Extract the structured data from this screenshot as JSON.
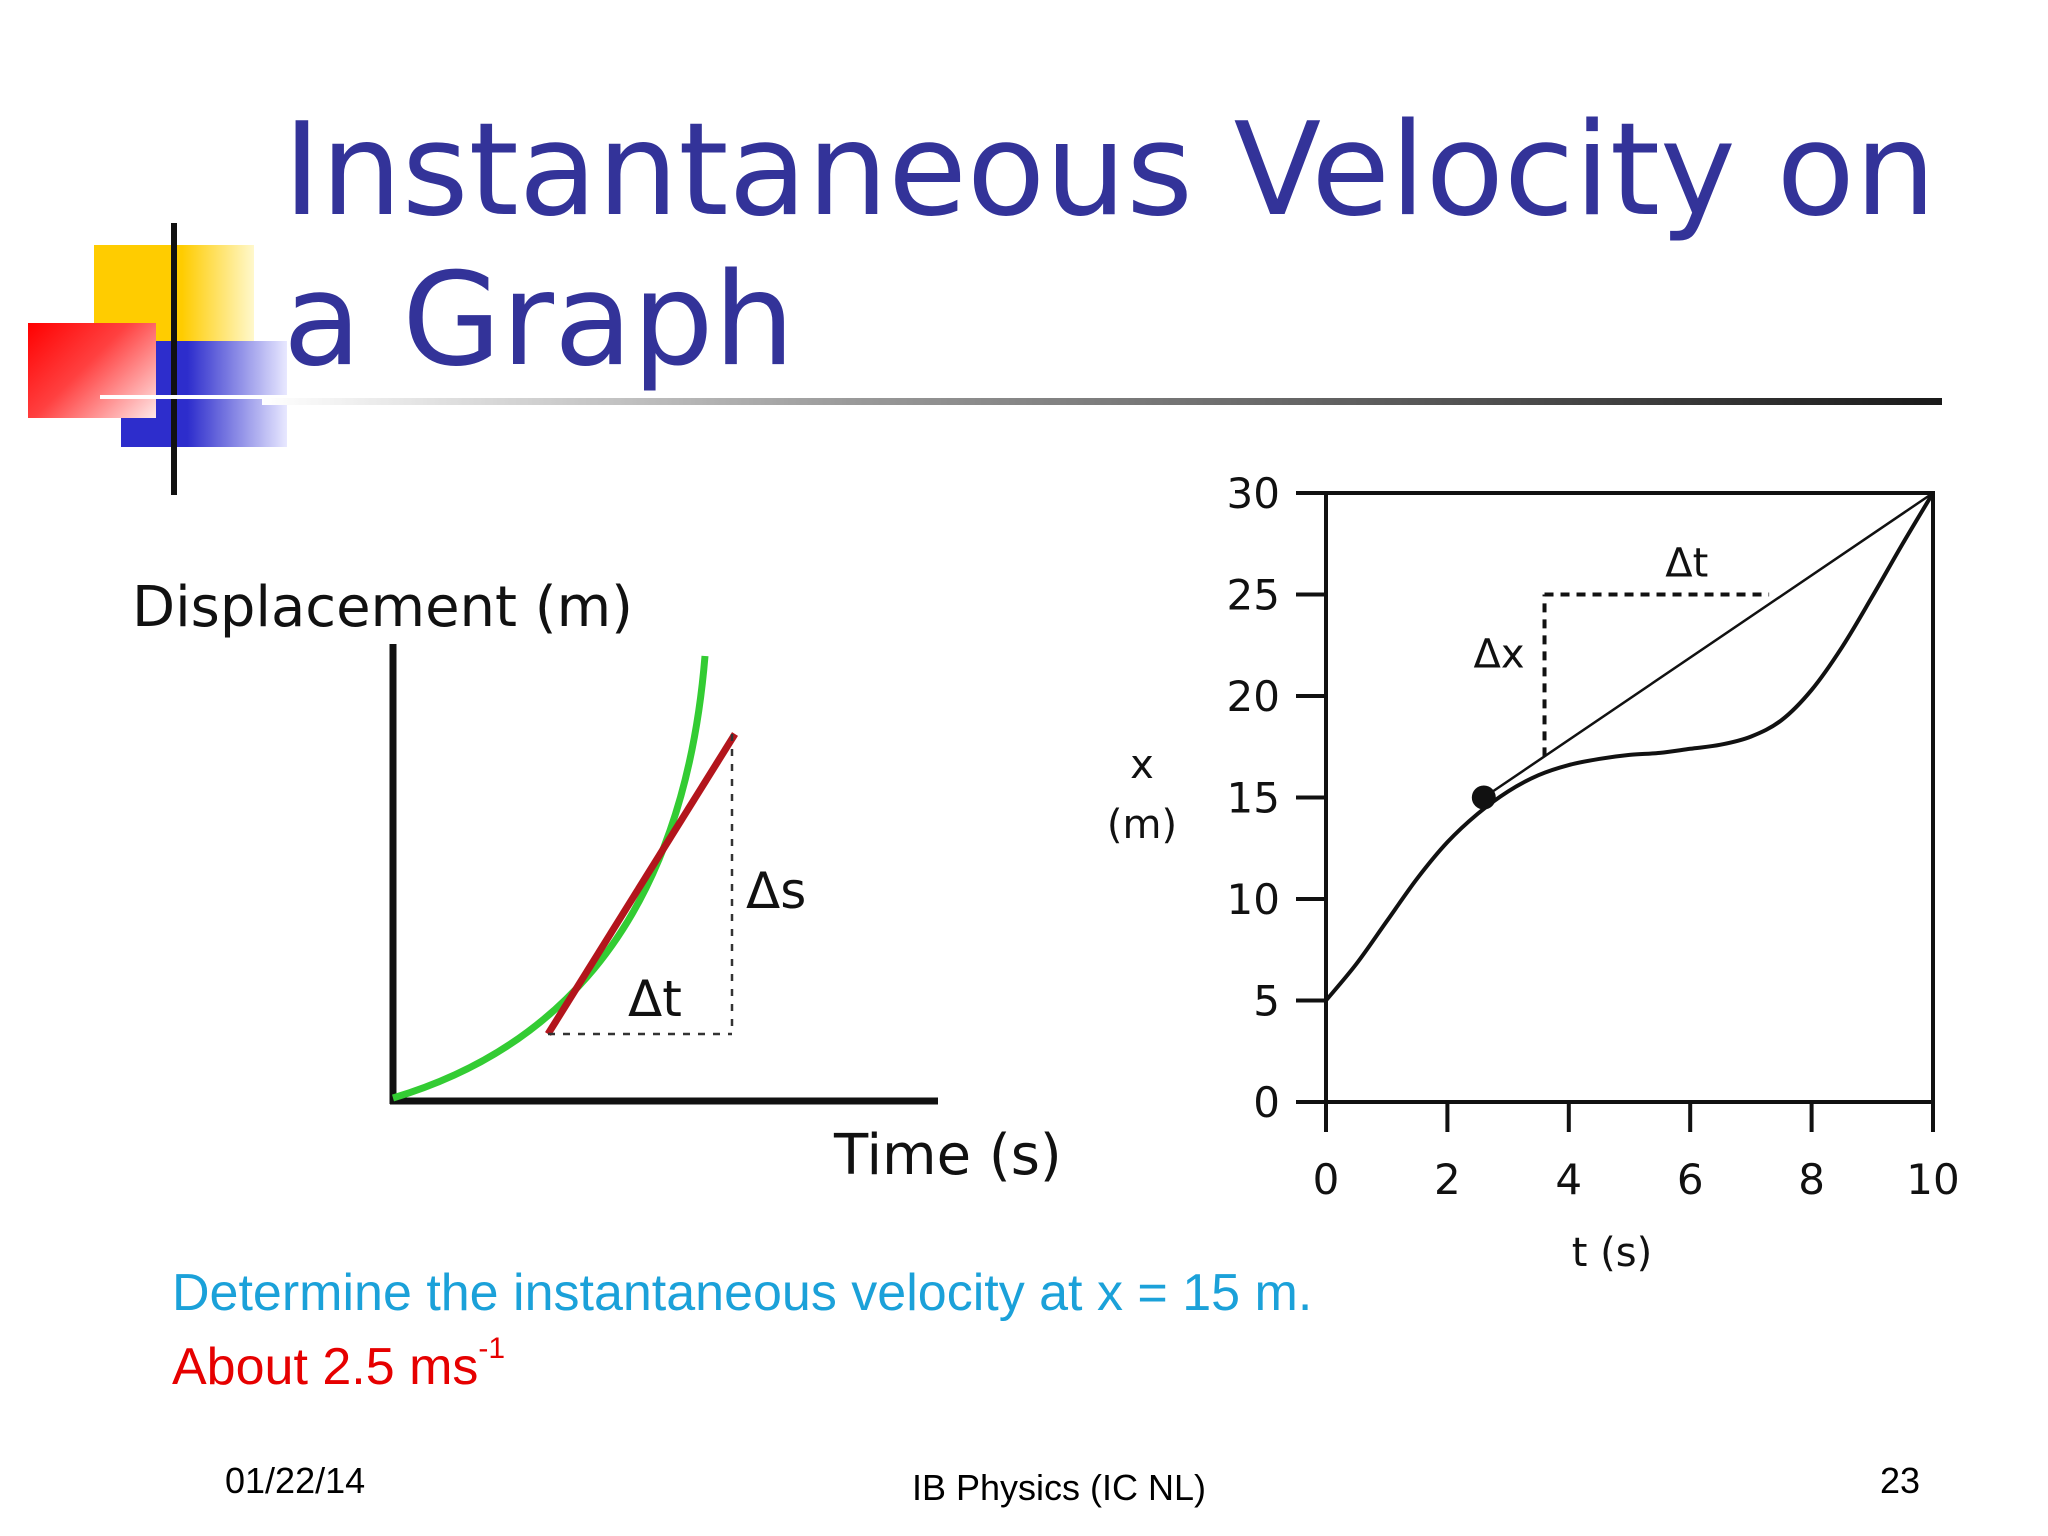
{
  "slide": {
    "title": "Instantaneous Velocity on a Graph",
    "question": "Determine the instantaneous velocity at x = 15 m.",
    "answer_text": "About 2.5 ms",
    "answer_sup": "-1"
  },
  "footer": {
    "date": "01/22/14",
    "course": "IB Physics (IC NL)",
    "page_number": "23"
  },
  "colors": {
    "title": "#333399",
    "question": "#1ba1d9",
    "answer": "#e60000",
    "curve_green": "#33cc33",
    "tangent_red": "#b3151c"
  },
  "left_graph": {
    "ylabel": "Displacement (m)",
    "xlabel": "Time (s)",
    "delta_s": "Δs",
    "delta_t": "Δt"
  },
  "chart_data": {
    "type": "line",
    "xlabel": "t (s)",
    "ylabel_top": "x",
    "ylabel_bottom": "(m)",
    "xlim": [
      0,
      10
    ],
    "ylim": [
      0,
      30
    ],
    "x_ticks": [
      "0",
      "2",
      "4",
      "6",
      "8",
      "10"
    ],
    "y_ticks": [
      "0",
      "5",
      "10",
      "15",
      "20",
      "25",
      "30"
    ],
    "grid": false,
    "series": [
      {
        "x": [
          0,
          0.5,
          1,
          1.5,
          2,
          2.5,
          3,
          3.5,
          4,
          4.5,
          5,
          5.5,
          6,
          6.5,
          7,
          7.5,
          8,
          8.5,
          9,
          9.5,
          10
        ],
        "y": [
          5,
          6.8,
          8.9,
          11,
          12.8,
          14.2,
          15.3,
          16.1,
          16.6,
          16.9,
          17.1,
          17.2,
          17.4,
          17.6,
          18,
          18.8,
          20.3,
          22.4,
          24.9,
          27.5,
          30
        ]
      }
    ],
    "point": {
      "x": 2.6,
      "y": 15
    },
    "secant": {
      "x": [
        2.6,
        10
      ],
      "y": [
        15,
        30
      ]
    },
    "delta_t_label": "Δt",
    "delta_x_label": "Δx",
    "delta_corner": {
      "x": 3.6,
      "y": 25
    },
    "delta_t_end_x": 7.3
  }
}
